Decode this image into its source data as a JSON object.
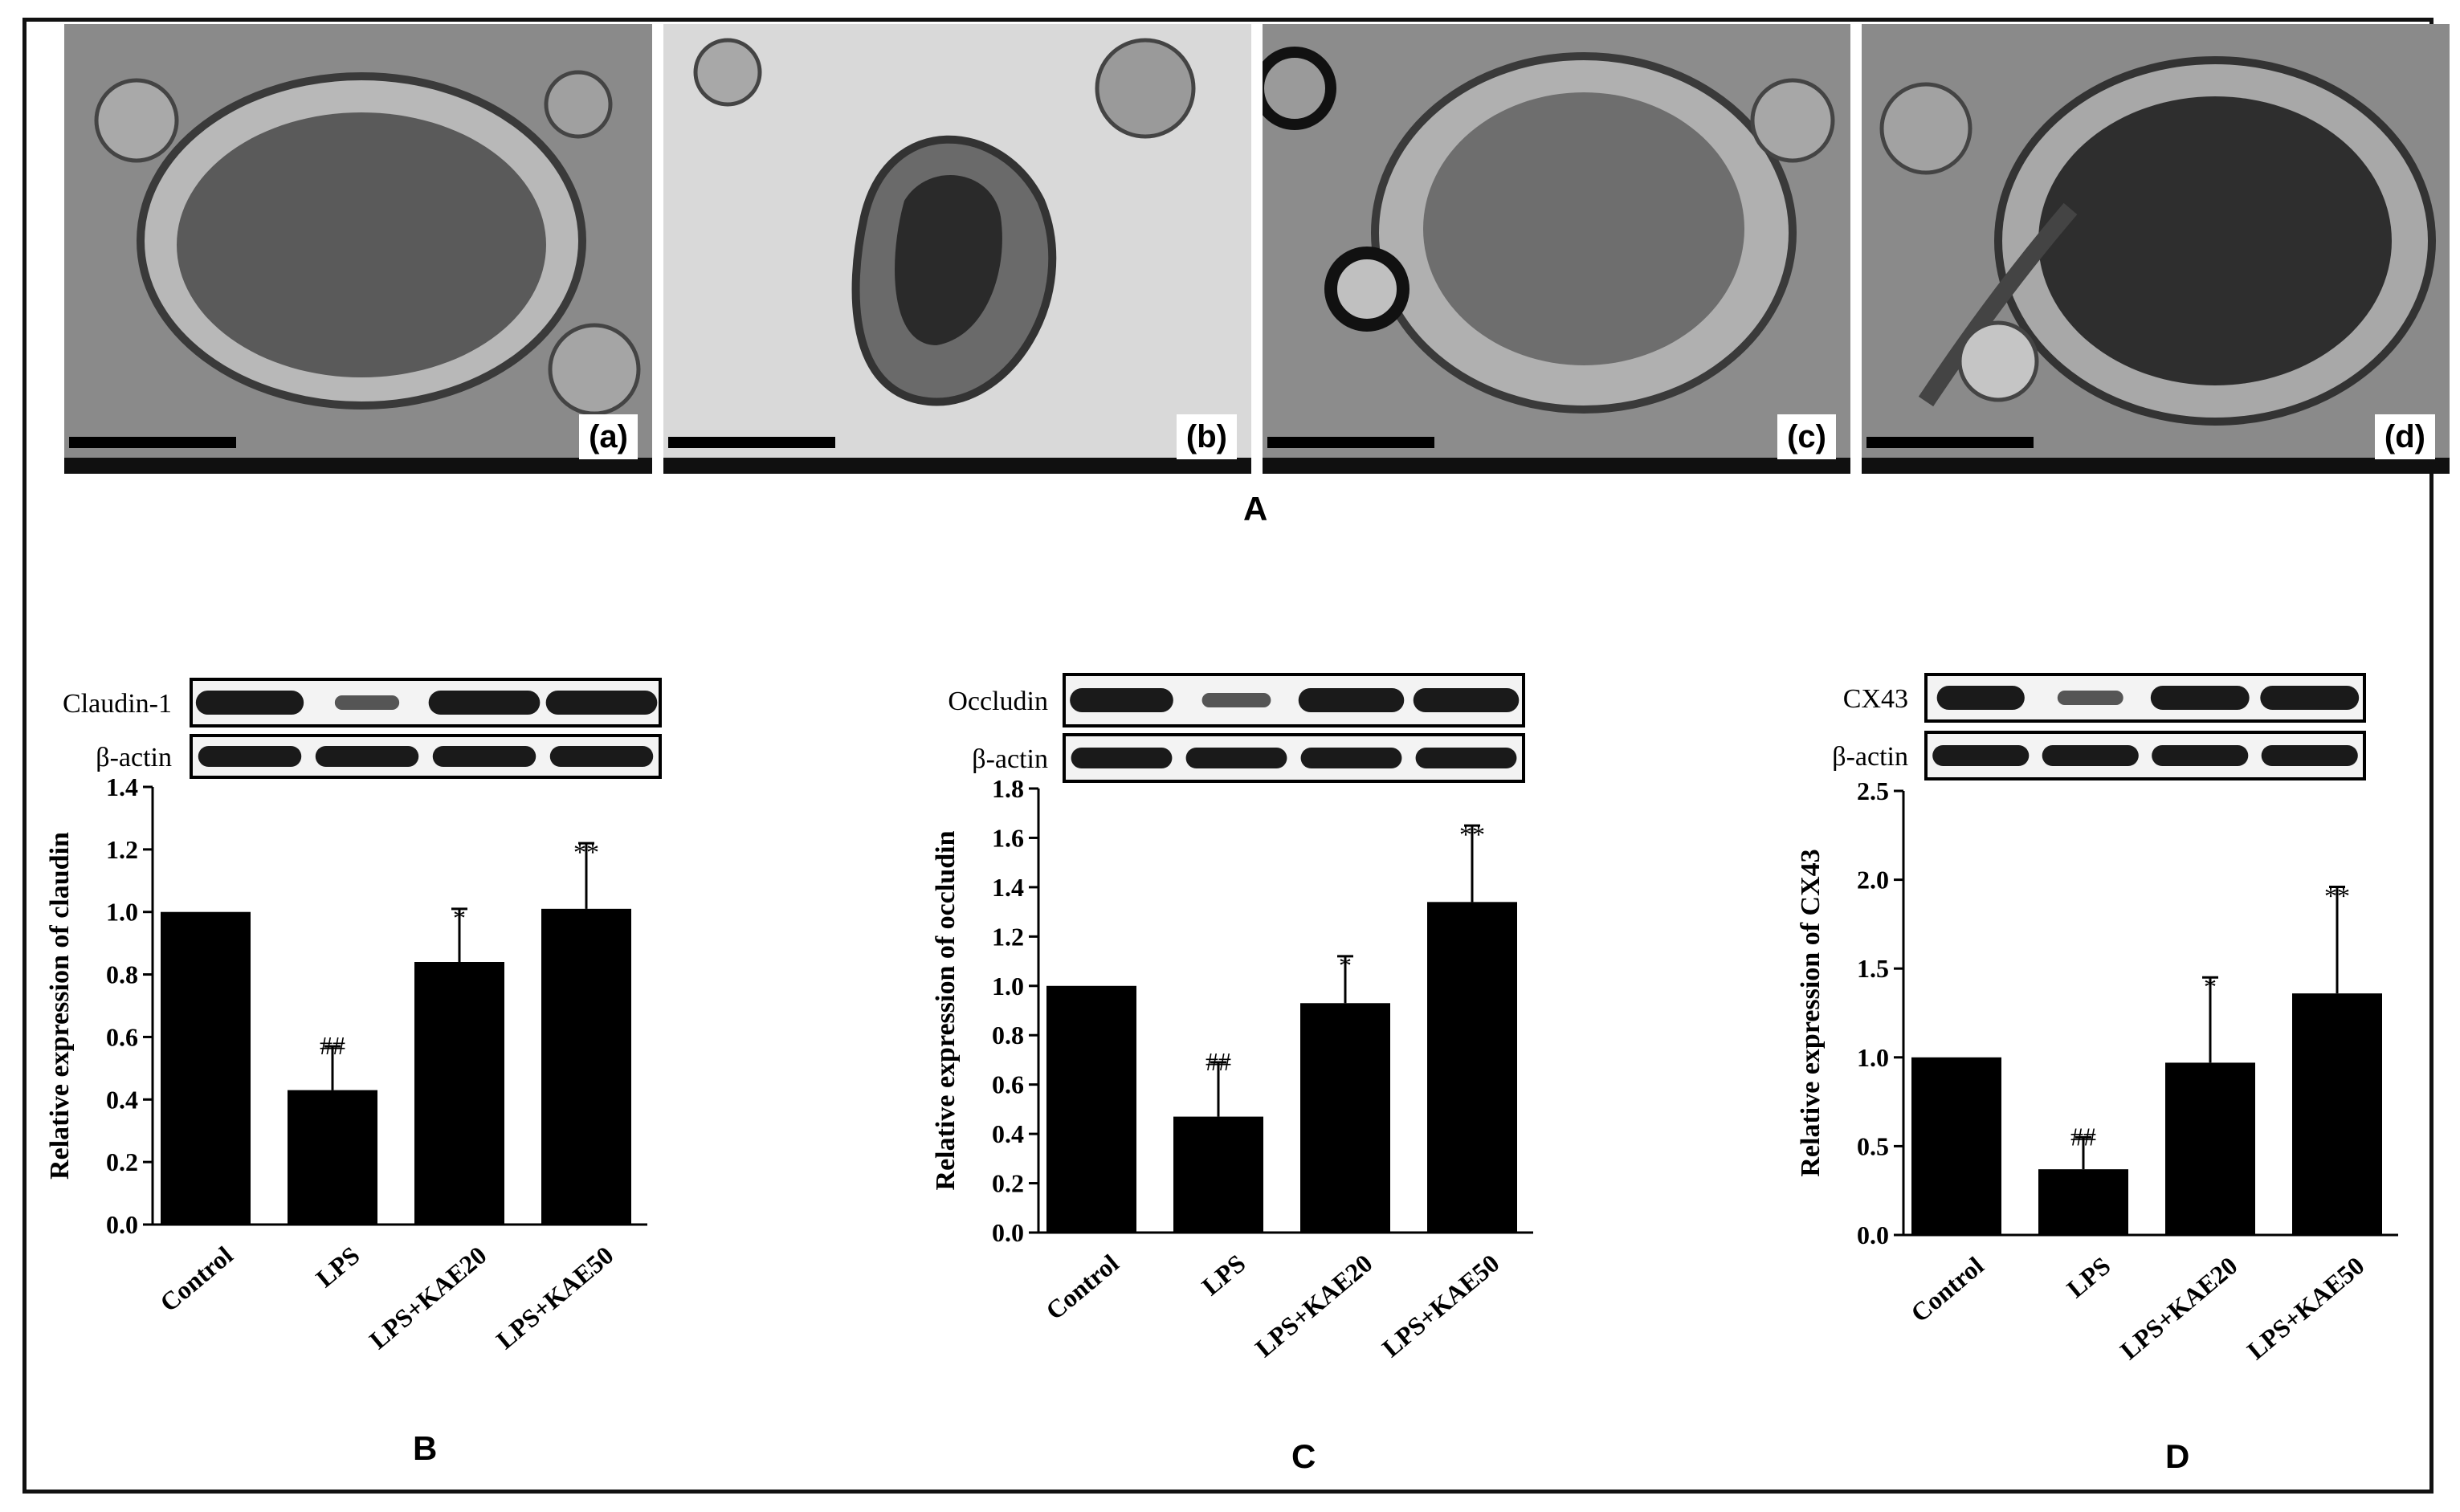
{
  "panels": {
    "tem_labels": [
      "(a)",
      "(b)",
      "(c)",
      "(d)"
    ],
    "main_label": "A",
    "chart_letters": [
      "B",
      "C",
      "D"
    ]
  },
  "chart_data": [
    {
      "type": "bar",
      "categories": [
        "Control",
        "LPS",
        "LPS+KAE20",
        "LPS+KAE50"
      ],
      "values": [
        1.0,
        0.43,
        0.84,
        1.01
      ],
      "errors": [
        0.0,
        0.14,
        0.17,
        0.21
      ],
      "annotations": [
        "",
        "##",
        "*",
        "**"
      ],
      "ylabel": "Relative expression of claudin",
      "ylim": [
        0,
        1.4
      ],
      "yticks": [
        "0.0",
        "0.2",
        "0.4",
        "0.6",
        "0.8",
        "1.0",
        "1.2",
        "1.4"
      ],
      "blot_labels": [
        "Claudin-1",
        "β-actin"
      ]
    },
    {
      "type": "bar",
      "categories": [
        "Control",
        "LPS",
        "LPS+KAE20",
        "LPS+KAE50"
      ],
      "values": [
        1.0,
        0.47,
        0.93,
        1.34
      ],
      "errors": [
        0.0,
        0.22,
        0.19,
        0.31
      ],
      "annotations": [
        "",
        "##",
        "*",
        "**"
      ],
      "ylabel": "Relative expression of occludin",
      "ylim": [
        0,
        1.8
      ],
      "yticks": [
        "0.0",
        "0.2",
        "0.4",
        "0.6",
        "0.8",
        "1.0",
        "1.2",
        "1.4",
        "1.6",
        "1.8"
      ],
      "blot_labels": [
        "Occludin",
        "β-actin"
      ]
    },
    {
      "type": "bar",
      "categories": [
        "Control",
        "LPS",
        "LPS+KAE20",
        "LPS+KAE50"
      ],
      "values": [
        1.0,
        0.37,
        0.97,
        1.36
      ],
      "errors": [
        0.0,
        0.18,
        0.48,
        0.6
      ],
      "annotations": [
        "",
        "##",
        "*",
        "**"
      ],
      "ylabel": "Relative expression of CX43",
      "ylim": [
        0,
        2.5
      ],
      "yticks": [
        "0.0",
        "0.5",
        "1.0",
        "1.5",
        "2.0",
        "2.5"
      ],
      "blot_labels": [
        "CX43",
        "β-actin"
      ]
    }
  ],
  "colors": {
    "bar": "#000000",
    "blot_band": "#1a1a1a",
    "tem_bg": "#7d7d7d"
  }
}
